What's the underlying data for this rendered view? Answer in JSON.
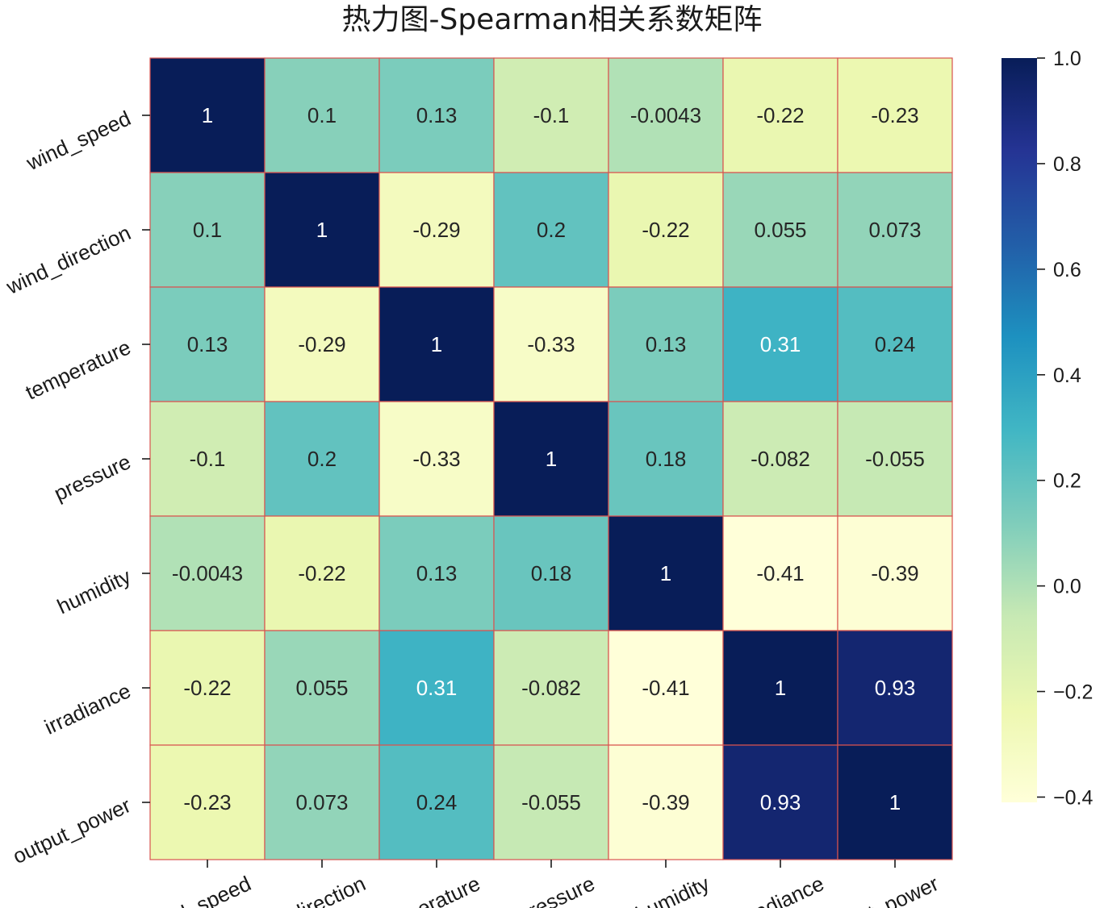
{
  "chart_data": {
    "type": "heatmap",
    "title": "热力图-Spearman相关系数矩阵",
    "x_categories": [
      "wind_speed",
      "wind_direction",
      "temperature",
      "pressure",
      "humidity",
      "irradiance",
      "output_power"
    ],
    "y_categories": [
      "wind_speed",
      "wind_direction",
      "temperature",
      "pressure",
      "humidity",
      "irradiance",
      "output_power"
    ],
    "values": [
      [
        1,
        0.1,
        0.13,
        -0.1,
        -0.0043,
        -0.22,
        -0.23
      ],
      [
        0.1,
        1,
        -0.29,
        0.2,
        -0.22,
        0.055,
        0.073
      ],
      [
        0.13,
        -0.29,
        1,
        -0.33,
        0.13,
        0.31,
        0.24
      ],
      [
        -0.1,
        0.2,
        -0.33,
        1,
        0.18,
        -0.082,
        -0.055
      ],
      [
        -0.0043,
        -0.22,
        0.13,
        0.18,
        1,
        -0.41,
        -0.39
      ],
      [
        -0.22,
        0.055,
        0.31,
        -0.082,
        -0.41,
        1,
        0.93
      ],
      [
        -0.23,
        0.073,
        0.24,
        -0.055,
        -0.39,
        0.93,
        1
      ]
    ],
    "labels": [
      [
        "1",
        "0.1",
        "0.13",
        "-0.1",
        "-0.0043",
        "-0.22",
        "-0.23"
      ],
      [
        "0.1",
        "1",
        "-0.29",
        "0.2",
        "-0.22",
        "0.055",
        "0.073"
      ],
      [
        "0.13",
        "-0.29",
        "1",
        "-0.33",
        "0.13",
        "0.31",
        "0.24"
      ],
      [
        "-0.1",
        "0.2",
        "-0.33",
        "1",
        "0.18",
        "-0.082",
        "-0.055"
      ],
      [
        "-0.0043",
        "-0.22",
        "0.13",
        "0.18",
        "1",
        "-0.41",
        "-0.39"
      ],
      [
        "-0.22",
        "0.055",
        "0.31",
        "-0.082",
        "-0.41",
        "1",
        "0.93"
      ],
      [
        "-0.23",
        "0.073",
        "0.24",
        "-0.055",
        "-0.39",
        "0.93",
        "1"
      ]
    ],
    "colormap": "YlGnBu",
    "vmin": -0.41,
    "vmax": 1.0,
    "cell_border_color": "#d9534f",
    "colorbar": {
      "ticks": [
        1.0,
        0.8,
        0.6,
        0.4,
        0.2,
        0.0,
        -0.2,
        -0.4
      ],
      "tick_labels": [
        "1.0",
        "0.8",
        "0.6",
        "0.4",
        "0.2",
        "0.0",
        "−0.2",
        "−0.4"
      ]
    }
  }
}
